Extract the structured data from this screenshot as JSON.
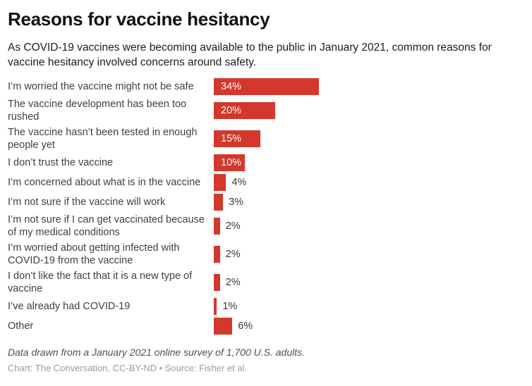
{
  "header": {
    "title": "Reasons for vaccine hesitancy",
    "subtitle": "As COVID-19 vaccines were becoming available to the public in January 2021, common reasons for vaccine hesitancy involved concerns around safety."
  },
  "chart_data": {
    "type": "bar",
    "orientation": "horizontal",
    "categories": [
      "I’m worried the vaccine might not be safe",
      "The vaccine development has been too rushed",
      "The vaccine hasn’t been tested in enough people yet",
      "I don’t trust the vaccine",
      "I’m concerned about what is in the vaccine",
      "I’m not sure if the vaccine will work",
      "I’m not sure if I can get vaccinated because of my medical conditions",
      "I’m worried about getting infected with COVID-19 from the vaccine",
      "I don’t like the fact that it is a new type of vaccine",
      "I’ve already had COVID-19",
      "Other"
    ],
    "values": [
      34,
      20,
      15,
      10,
      4,
      3,
      2,
      2,
      2,
      1,
      6
    ],
    "value_labels": [
      "34%",
      "20%",
      "15%",
      "10%",
      "4%",
      "3%",
      "2%",
      "2%",
      "2%",
      "1%",
      "6%"
    ],
    "value_suffix": "%",
    "xlim": [
      0,
      100
    ],
    "bar_color": "#d4372c",
    "inside_label_threshold": 10,
    "grid": false,
    "legend": false
  },
  "footer": {
    "note": "Data drawn from a January 2021 online survey of 1,700 U.S. adults.",
    "credit": "Chart: The Conversation, CC-BY-ND • Source: Fisher et al."
  }
}
